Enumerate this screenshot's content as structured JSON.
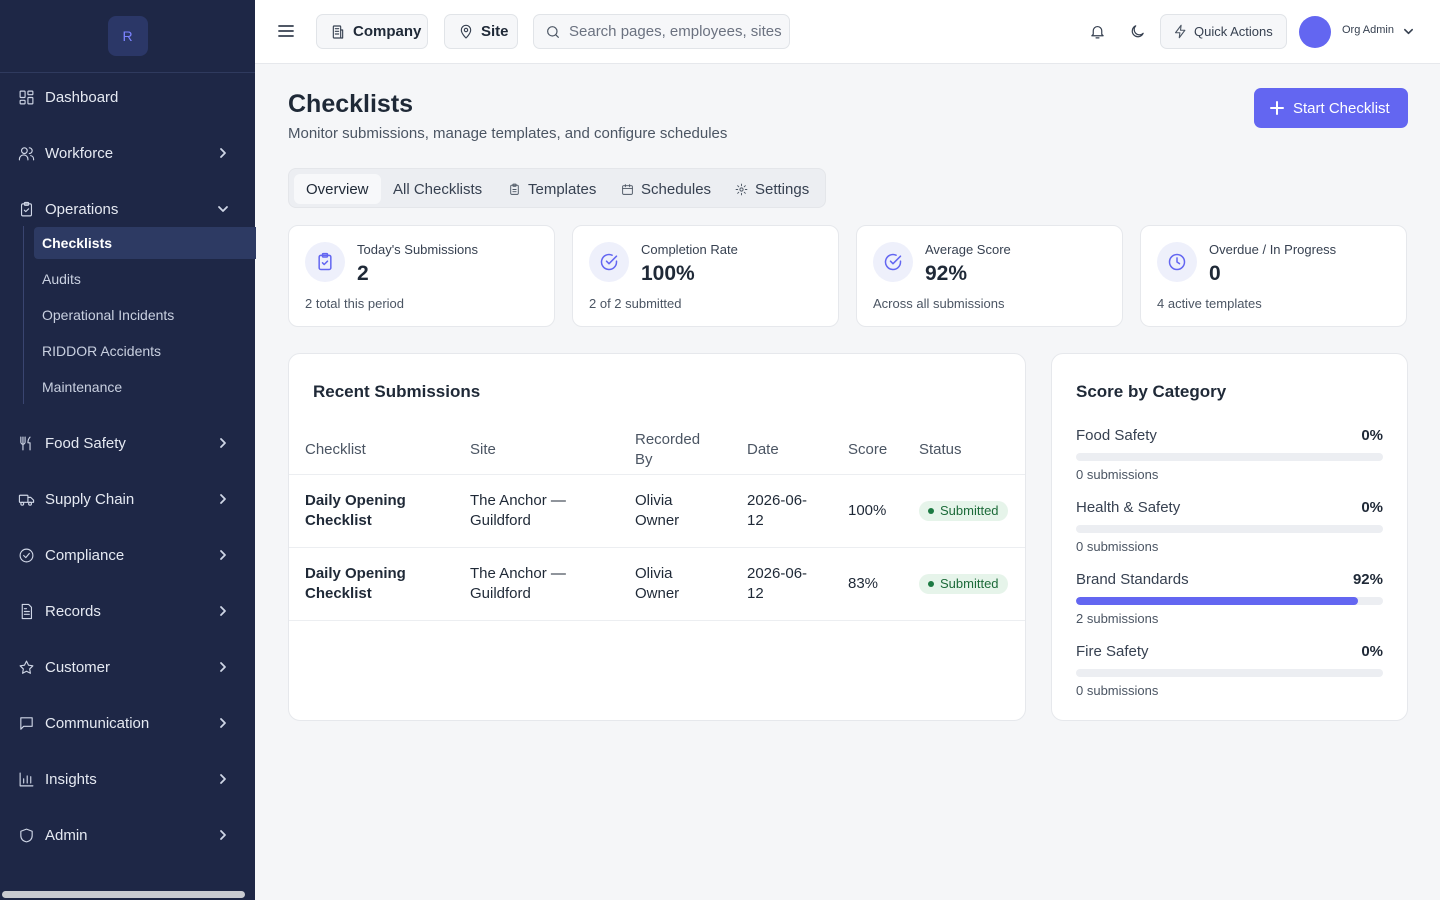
{
  "sidebar": {
    "logo_letter": "R",
    "items": [
      {
        "label": "Dashboard",
        "icon": "dashboard-icon"
      },
      {
        "label": "Workforce",
        "icon": "users-icon"
      },
      {
        "label": "Operations",
        "icon": "clipboard-icon"
      },
      {
        "label": "Food Safety",
        "icon": "utensils-icon"
      },
      {
        "label": "Supply Chain",
        "icon": "truck-icon"
      },
      {
        "label": "Compliance",
        "icon": "check-circle-icon"
      },
      {
        "label": "Records",
        "icon": "file-icon"
      },
      {
        "label": "Customer",
        "icon": "star-icon"
      },
      {
        "label": "Communication",
        "icon": "message-icon"
      },
      {
        "label": "Insights",
        "icon": "bar-chart-icon"
      },
      {
        "label": "Admin",
        "icon": "shield-icon"
      }
    ],
    "sub_items": [
      {
        "label": "Checklists",
        "active": true
      },
      {
        "label": "Audits"
      },
      {
        "label": "Operational Incidents"
      },
      {
        "label": "RIDDOR Accidents"
      },
      {
        "label": "Maintenance"
      }
    ]
  },
  "topbar": {
    "company_label": "Company",
    "site_label": "Site",
    "search_placeholder": "Search pages, employees, sites",
    "quick_actions_label": "Quick Actions",
    "user_name": "Org Admin",
    "avatar_color": "#6366f1"
  },
  "page": {
    "title": "Checklists",
    "subtitle": "Monitor submissions, manage templates, and configure schedules",
    "start_button": "Start Checklist"
  },
  "tabs": [
    {
      "label": "Overview",
      "active": true
    },
    {
      "label": "All Checklists"
    },
    {
      "label": "Templates",
      "icon": "clipboard-icon"
    },
    {
      "label": "Schedules",
      "icon": "calendar-icon"
    },
    {
      "label": "Settings",
      "icon": "gear-icon"
    }
  ],
  "stats": [
    {
      "label": "Today's Submissions",
      "value": "2",
      "footnote": "2 total this period",
      "icon": "clipboard-check-icon"
    },
    {
      "label": "Completion Rate",
      "value": "100%",
      "footnote": "2 of 2 submitted",
      "icon": "check-circle-icon"
    },
    {
      "label": "Average Score",
      "value": "92%",
      "footnote": "Across all submissions",
      "icon": "check-circle-icon"
    },
    {
      "label": "Overdue / In Progress",
      "value": "0",
      "footnote": "4 active templates",
      "icon": "clock-icon"
    }
  ],
  "recent": {
    "title": "Recent Submissions",
    "columns": [
      "Checklist",
      "Site",
      "Recorded By",
      "Date",
      "Score",
      "Status"
    ],
    "rows": [
      {
        "checklist": "Daily Opening Checklist",
        "site": "The Anchor — Guildford",
        "recorded_by": "Olivia Owner",
        "date": "2026-06-12",
        "score": "100%",
        "status": "Submitted"
      },
      {
        "checklist": "Daily Opening Checklist",
        "site": "The Anchor — Guildford",
        "recorded_by": "Olivia Owner",
        "date": "2026-06-12",
        "score": "83%",
        "status": "Submitted"
      }
    ]
  },
  "categories": {
    "title": "Score by Category",
    "items": [
      {
        "name": "Food Safety",
        "percent": "0%",
        "fraction": 0,
        "count": "0 submissions"
      },
      {
        "name": "Health & Safety",
        "percent": "0%",
        "fraction": 0,
        "count": "0 submissions"
      },
      {
        "name": "Brand Standards",
        "percent": "92%",
        "fraction": 0.92,
        "count": "2 submissions"
      },
      {
        "name": "Fire Safety",
        "percent": "0%",
        "fraction": 0,
        "count": "0 submissions"
      }
    ],
    "accent_color": "#6366f1"
  },
  "colors": {
    "sidebar_bg": "#1e2746",
    "accent": "#6366f1",
    "status_submitted_bg": "#e6f4ea",
    "status_submitted_text": "#1d6b3a"
  }
}
